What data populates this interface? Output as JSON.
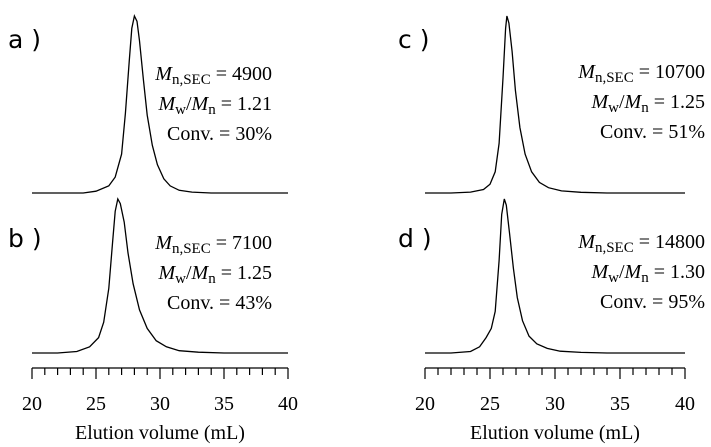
{
  "chart_data": [
    {
      "type": "line",
      "panel": "a",
      "panel_label": "a )",
      "xlim": [
        20,
        40
      ],
      "peak_x": 28.0,
      "x": [
        24,
        25,
        26,
        26.5,
        27,
        27.3,
        27.6,
        27.8,
        28.0,
        28.2,
        28.4,
        28.7,
        29.0,
        29.4,
        29.8,
        30.3,
        30.8,
        31.5,
        32.5,
        34,
        40
      ],
      "values": [
        0,
        0.01,
        0.04,
        0.09,
        0.22,
        0.45,
        0.75,
        0.93,
        1.0,
        0.97,
        0.86,
        0.64,
        0.44,
        0.27,
        0.16,
        0.08,
        0.04,
        0.015,
        0.005,
        0,
        0
      ],
      "annotations": {
        "mn_prefix": "M",
        "mn_sub": "n,SEC",
        "mn_value": " = 4900",
        "disp_m1": "M",
        "disp_w": "w",
        "disp_slash": "/",
        "disp_m2": "M",
        "disp_n": "n",
        "disp_value": " = 1.21",
        "conv": "Conv. = 30%"
      }
    },
    {
      "type": "line",
      "panel": "b",
      "panel_label": "b )",
      "xlim": [
        20,
        40
      ],
      "peak_x": 26.7,
      "x": [
        22,
        23.5,
        24.5,
        25.2,
        25.6,
        26.0,
        26.3,
        26.5,
        26.7,
        26.9,
        27.2,
        27.5,
        27.9,
        28.4,
        29.0,
        29.7,
        30.5,
        31.5,
        33,
        35,
        40
      ],
      "values": [
        0,
        0.01,
        0.04,
        0.1,
        0.2,
        0.42,
        0.72,
        0.92,
        1.0,
        0.97,
        0.85,
        0.65,
        0.45,
        0.28,
        0.16,
        0.08,
        0.04,
        0.015,
        0.005,
        0,
        0
      ],
      "annotations": {
        "mn_prefix": "M",
        "mn_sub": "n,SEC",
        "mn_value": " = 7100",
        "disp_m1": "M",
        "disp_w": "w",
        "disp_slash": "/",
        "disp_m2": "M",
        "disp_n": "n",
        "disp_value": " = 1.25",
        "conv": "Conv. = 43%"
      }
    },
    {
      "type": "line",
      "panel": "c",
      "panel_label": "c )",
      "xlim": [
        20,
        40
      ],
      "peak_x": 26.3,
      "x": [
        22,
        23.5,
        24.5,
        25.0,
        25.4,
        25.7,
        26.0,
        26.2,
        26.3,
        26.45,
        26.7,
        26.95,
        27.3,
        27.7,
        28.2,
        28.8,
        29.5,
        30.5,
        32,
        34,
        40
      ],
      "values": [
        0,
        0.005,
        0.02,
        0.05,
        0.12,
        0.28,
        0.65,
        0.93,
        1.0,
        0.96,
        0.8,
        0.58,
        0.37,
        0.22,
        0.12,
        0.06,
        0.03,
        0.012,
        0.004,
        0,
        0
      ],
      "annotations": {
        "mn_prefix": "M",
        "mn_sub": "n,SEC",
        "mn_value": " = 10700",
        "disp_m1": "M",
        "disp_w": "w",
        "disp_slash": "/",
        "disp_m2": "M",
        "disp_n": "n",
        "disp_value": " = 1.25",
        "conv": "Conv. = 51%"
      }
    },
    {
      "type": "line",
      "panel": "d",
      "panel_label": "d )",
      "xlim": [
        20,
        40
      ],
      "peak_x": 26.1,
      "x": [
        22,
        23.5,
        24.2,
        24.7,
        25.1,
        25.4,
        25.7,
        25.9,
        26.1,
        26.25,
        26.5,
        26.8,
        27.1,
        27.5,
        28.0,
        28.6,
        29.4,
        30.4,
        32,
        34,
        40
      ],
      "values": [
        0,
        0.01,
        0.04,
        0.1,
        0.16,
        0.27,
        0.6,
        0.9,
        1.0,
        0.96,
        0.78,
        0.55,
        0.36,
        0.21,
        0.11,
        0.06,
        0.03,
        0.012,
        0.004,
        0,
        0
      ],
      "annotations": {
        "mn_prefix": "M",
        "mn_sub": "n,SEC",
        "mn_value": " = 14800",
        "disp_m1": "M",
        "disp_w": "w",
        "disp_slash": "/",
        "disp_m2": "M",
        "disp_n": "n",
        "disp_value": " = 1.30",
        "conv": "Conv. = 95%"
      }
    }
  ],
  "x_axes": {
    "xlabel": "Elution volume (mL)",
    "major_ticks": [
      20,
      25,
      30,
      35,
      40
    ],
    "tick_labels": [
      "20",
      "25",
      "30",
      "35",
      "40"
    ],
    "minor_step": 1
  }
}
